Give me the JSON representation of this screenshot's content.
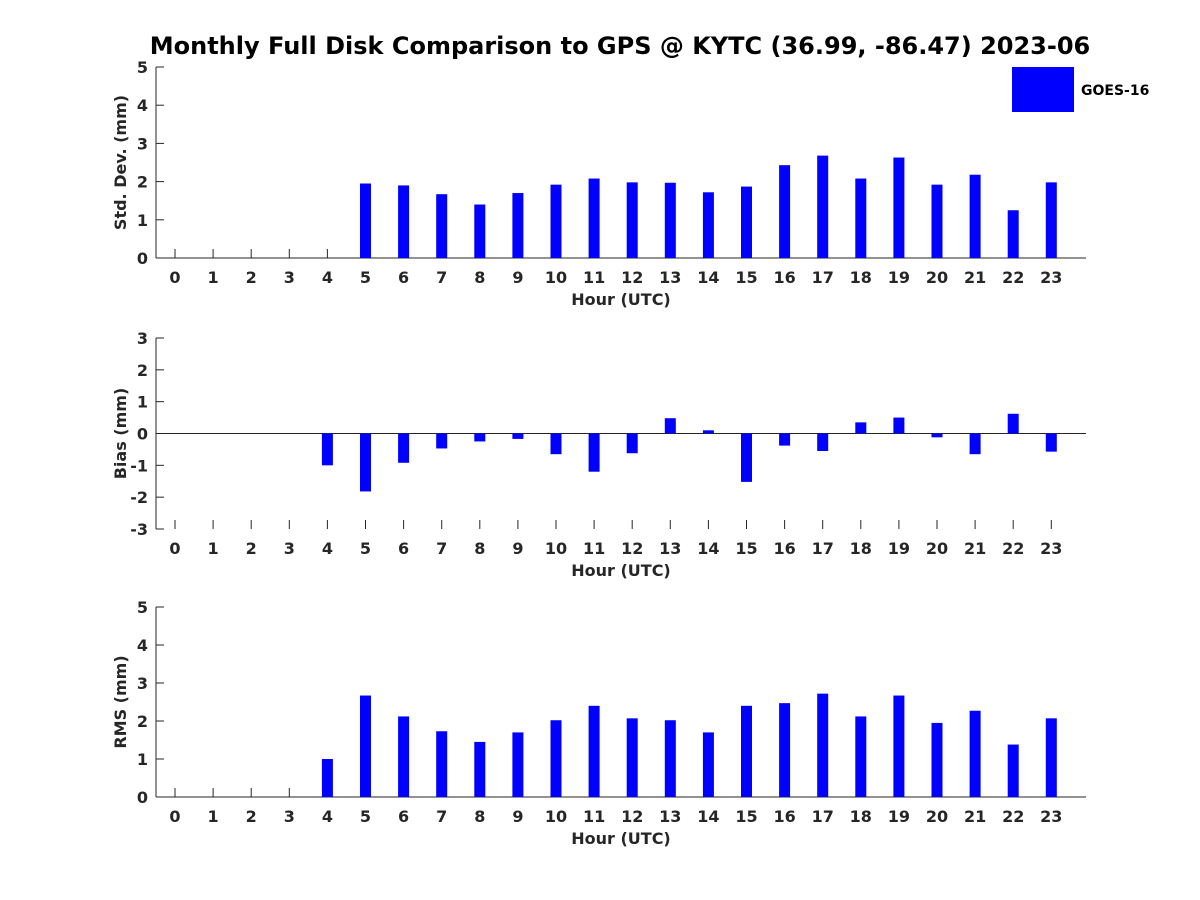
{
  "title": "Monthly Full Disk Comparison to GPS @ KYTC (36.99, -86.47) 2023-06",
  "legend": {
    "label": "GOES-16",
    "color": "#0000ff"
  },
  "chart_data": [
    {
      "type": "bar",
      "ylabel": "Std. Dev. (mm)",
      "xlabel": "Hour (UTC)",
      "ylim": [
        0,
        5
      ],
      "yticks": [
        0,
        1,
        2,
        3,
        4,
        5
      ],
      "categories": [
        "0",
        "1",
        "2",
        "3",
        "4",
        "5",
        "6",
        "7",
        "8",
        "9",
        "10",
        "11",
        "12",
        "13",
        "14",
        "15",
        "16",
        "17",
        "18",
        "19",
        "20",
        "21",
        "22",
        "23"
      ],
      "series": [
        {
          "name": "GOES-16",
          "values": [
            null,
            null,
            null,
            null,
            null,
            1.95,
            1.9,
            1.67,
            1.4,
            1.7,
            1.92,
            2.08,
            1.98,
            1.97,
            1.72,
            1.87,
            2.43,
            2.68,
            2.08,
            2.63,
            1.92,
            2.18,
            1.25,
            1.98
          ]
        }
      ]
    },
    {
      "type": "bar",
      "ylabel": "Bias (mm)",
      "xlabel": "Hour (UTC)",
      "ylim": [
        -3,
        3
      ],
      "yticks": [
        -3,
        -2,
        -1,
        0,
        1,
        2,
        3
      ],
      "categories": [
        "0",
        "1",
        "2",
        "3",
        "4",
        "5",
        "6",
        "7",
        "8",
        "9",
        "10",
        "11",
        "12",
        "13",
        "14",
        "15",
        "16",
        "17",
        "18",
        "19",
        "20",
        "21",
        "22",
        "23"
      ],
      "series": [
        {
          "name": "GOES-16",
          "values": [
            null,
            null,
            null,
            null,
            -1.0,
            -1.82,
            -0.92,
            -0.47,
            -0.25,
            -0.17,
            -0.65,
            -1.2,
            -0.62,
            0.48,
            0.1,
            -1.52,
            -0.38,
            -0.55,
            0.35,
            0.5,
            -0.12,
            -0.65,
            0.62,
            -0.57
          ]
        }
      ]
    },
    {
      "type": "bar",
      "ylabel": "RMS (mm)",
      "xlabel": "Hour (UTC)",
      "ylim": [
        0,
        5
      ],
      "yticks": [
        0,
        1,
        2,
        3,
        4,
        5
      ],
      "categories": [
        "0",
        "1",
        "2",
        "3",
        "4",
        "5",
        "6",
        "7",
        "8",
        "9",
        "10",
        "11",
        "12",
        "13",
        "14",
        "15",
        "16",
        "17",
        "18",
        "19",
        "20",
        "21",
        "22",
        "23"
      ],
      "series": [
        {
          "name": "GOES-16",
          "values": [
            null,
            null,
            null,
            null,
            1.0,
            2.67,
            2.12,
            1.73,
            1.45,
            1.7,
            2.02,
            2.4,
            2.07,
            2.02,
            1.7,
            2.4,
            2.47,
            2.72,
            2.12,
            2.67,
            1.95,
            2.27,
            1.38,
            2.07
          ]
        }
      ]
    }
  ]
}
